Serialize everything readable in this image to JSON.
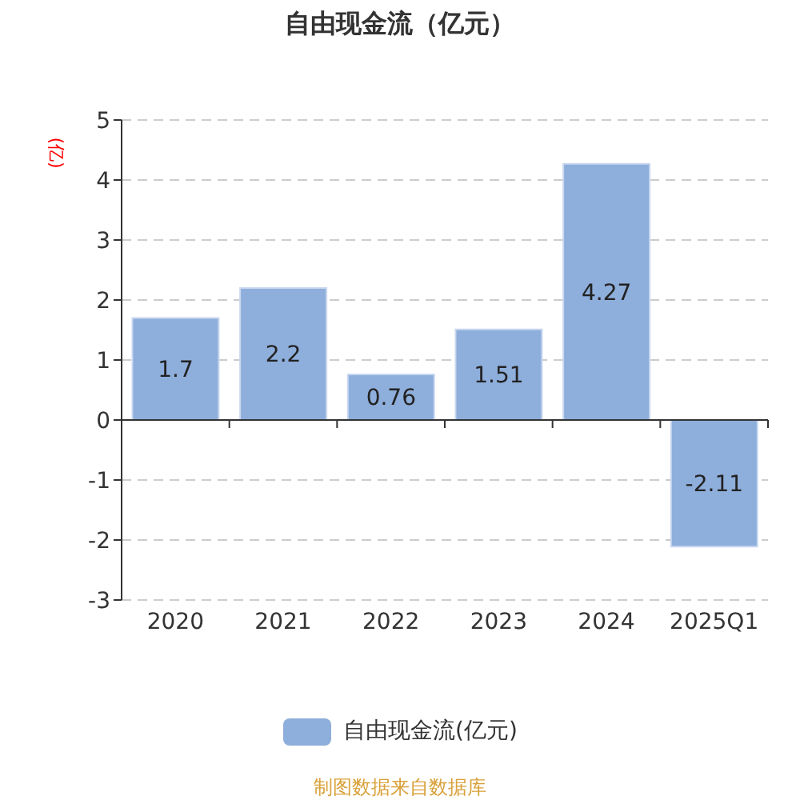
{
  "chart_data": {
    "type": "bar",
    "title": "自由现金流（亿元）",
    "ylabel": "(亿)",
    "categories": [
      "2020",
      "2021",
      "2022",
      "2023",
      "2024",
      "2025Q1"
    ],
    "series": [
      {
        "name": "自由现金流(亿元)",
        "color": "#8eaedb",
        "values": [
          1.7,
          2.2,
          0.76,
          1.51,
          4.27,
          -2.11
        ]
      }
    ],
    "ylim": [
      -3,
      5
    ],
    "yticks": [
      -3,
      -2,
      -1,
      0,
      1,
      2,
      3,
      4,
      5
    ],
    "grid": "y",
    "legend": "bottom",
    "data_labels": true,
    "annotations": [
      "制图数据来自数据库"
    ]
  }
}
